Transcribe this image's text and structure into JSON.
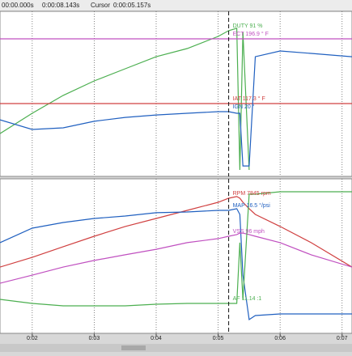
{
  "toolbar": {
    "start": "00:00.000s",
    "end": "0:00:08.143s",
    "cursor_label": "Cursor",
    "cursor_value": "0:00:05.157s"
  },
  "chart_data": [
    {
      "type": "line",
      "x": [
        1.48,
        2.0,
        2.5,
        3.0,
        3.5,
        4.0,
        4.5,
        5.0,
        5.17,
        5.3,
        5.35,
        5.4,
        5.5,
        5.6,
        6.0,
        6.5,
        7.16
      ],
      "xlim": [
        1.48,
        7.16
      ],
      "xticks": [
        2,
        3,
        4,
        5,
        6,
        7
      ],
      "ylim": [
        0,
        100
      ],
      "cursor_x": 5.17,
      "grid": true,
      "series": [
        {
          "name": "DUTY 91 %",
          "color": "#4caf50",
          "values": [
            26.7,
            40.1,
            51.9,
            61.5,
            69.5,
            77.5,
            82.9,
            90.9,
            94.7,
            96.3,
            2.7,
            93.6,
            2.7,
            null,
            null,
            null,
            null
          ]
        },
        {
          "name": "ECT 196.9 ° F",
          "color": "#c050c0",
          "values": [
            89.3,
            89.3,
            89.3,
            89.3,
            89.3,
            89.3,
            89.3,
            89.3,
            89.3,
            89.3,
            89.3,
            89.3,
            89.3,
            89.3,
            89.3,
            89.3,
            89.3
          ]
        },
        {
          "name": "IAT 117.3 ° F",
          "color": "#d04040",
          "values": [
            46.5,
            46.5,
            46.5,
            46.5,
            46.5,
            46.5,
            46.5,
            46.5,
            46.5,
            46.5,
            46.5,
            46.5,
            46.5,
            46.5,
            46.5,
            46.5,
            46.5
          ]
        },
        {
          "name": "IGN 20 °",
          "color": "#2060c0",
          "values": [
            35.8,
            29.4,
            30.5,
            34.8,
            37.4,
            39.0,
            40.1,
            41.2,
            41.2,
            40.1,
            40.1,
            5.3,
            5.3,
            77.5,
            81.3,
            79.7,
            77.5
          ]
        }
      ]
    },
    {
      "type": "line",
      "x": [
        1.48,
        2.0,
        2.5,
        3.0,
        3.5,
        4.0,
        4.5,
        5.0,
        5.17,
        5.3,
        5.35,
        5.4,
        5.5,
        5.6,
        6.0,
        6.5,
        7.16
      ],
      "xlim": [
        1.48,
        7.16
      ],
      "xticks": [
        {
          "value": 2,
          "label": "0:02"
        },
        {
          "value": 3,
          "label": "0:03"
        },
        {
          "value": 4,
          "label": "0:04"
        },
        {
          "value": 5,
          "label": "0:05"
        },
        {
          "value": 6,
          "label": "0:06"
        },
        {
          "value": 7,
          "label": "0:07"
        }
      ],
      "ylim": [
        0,
        100
      ],
      "cursor_x": 5.17,
      "grid": true,
      "series": [
        {
          "name": "RPM 7845 rpm",
          "color": "#d04040",
          "values": [
            43.2,
            49.7,
            56.8,
            63.8,
            70.3,
            75.7,
            81.1,
            86.5,
            89.2,
            90.3,
            89.2,
            86.5,
            82.2,
            78.4,
            70.3,
            59.5,
            43.2
          ]
        },
        {
          "name": "MAP 16.5 °/psi",
          "color": "#2060c0",
          "values": [
            59.5,
            69.2,
            73.0,
            75.7,
            77.3,
            79.5,
            80.0,
            81.1,
            81.1,
            82.2,
            78.4,
            37.8,
            8.1,
            10.8,
            11.9,
            11.9,
            11.9
          ]
        },
        {
          "name": "VSS 96 mph",
          "color": "#c050c0",
          "values": [
            32.4,
            37.8,
            43.2,
            47.6,
            51.4,
            55.1,
            59.5,
            62.2,
            63.8,
            64.9,
            65.9,
            65.9,
            64.9,
            63.8,
            59.5,
            51.4,
            43.2
          ]
        },
        {
          "name": "AF 11.14 :1",
          "color": "#4caf50",
          "values": [
            21.6,
            18.9,
            17.3,
            17.3,
            17.3,
            18.4,
            18.9,
            18.9,
            18.9,
            18.9,
            59.5,
            21.6,
            91.9,
            91.9,
            93.5,
            93.5,
            93.5
          ]
        }
      ]
    }
  ]
}
